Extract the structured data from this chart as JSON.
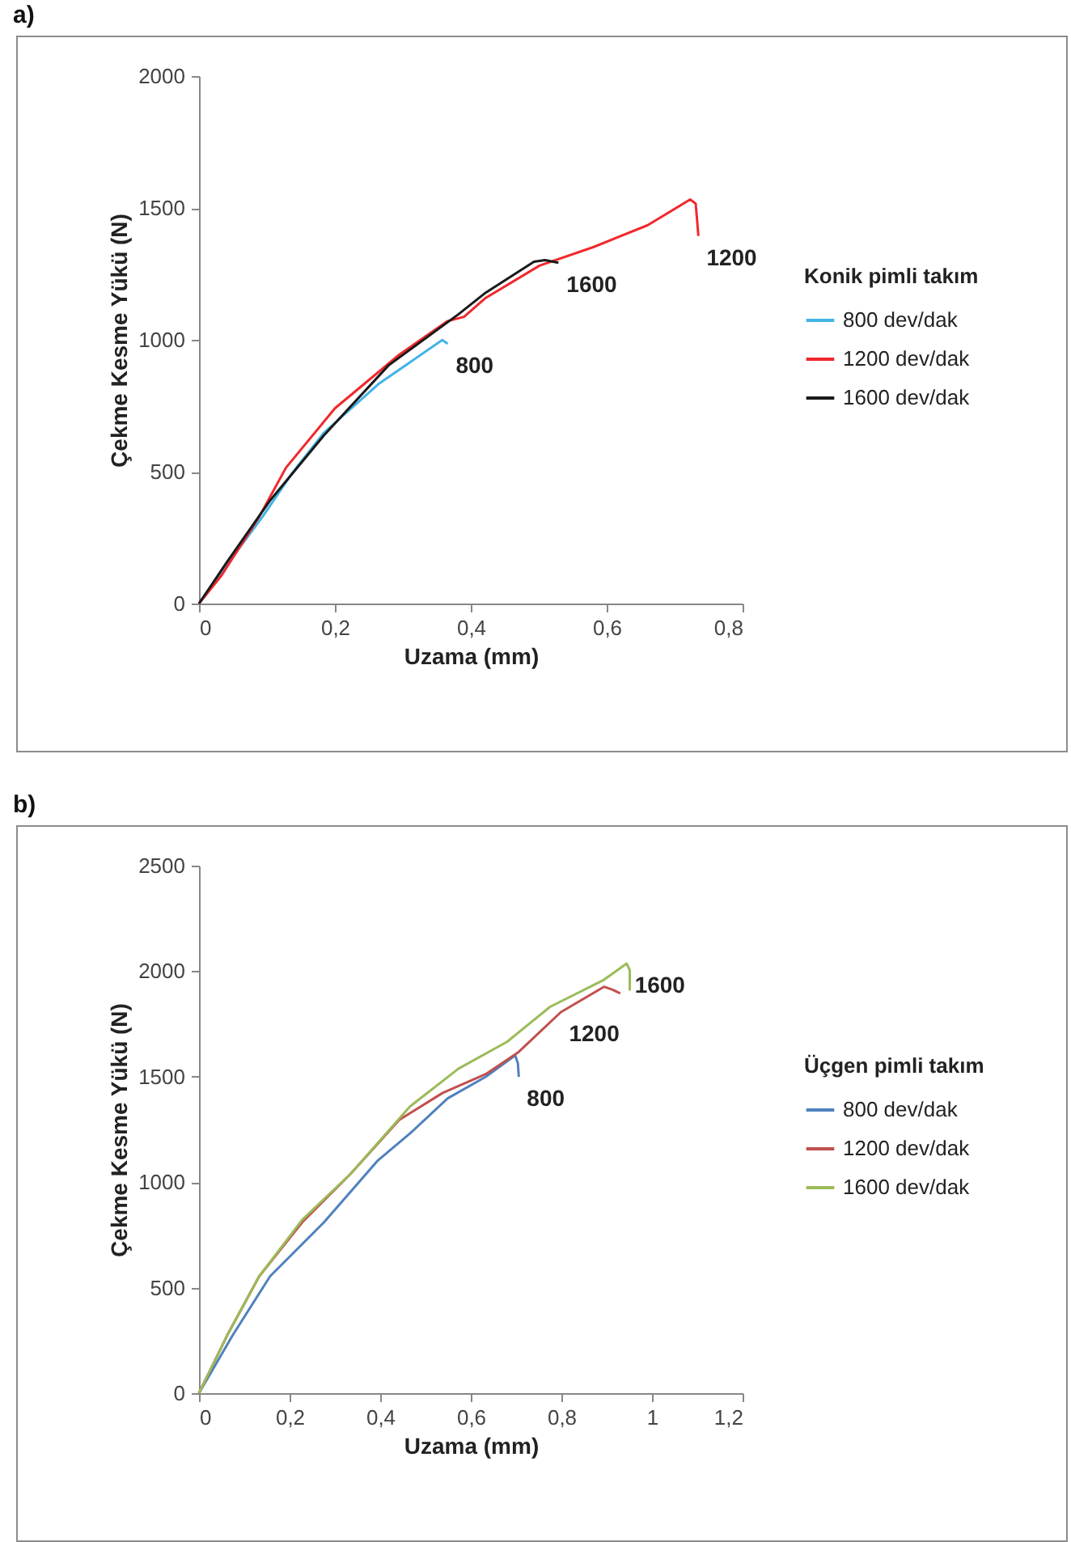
{
  "chart_data": [
    {
      "type": "line",
      "title": "a)",
      "xlabel": "Uzama (mm)",
      "ylabel": "Çekme Kesme Yükü (N)",
      "legend_title": "Konik pimli takım",
      "legend": "right",
      "grid": false,
      "xlim": [
        0,
        0.8
      ],
      "ylim": [
        0,
        2000
      ],
      "xticks": [
        {
          "value": 0,
          "label": "0"
        },
        {
          "value": 0.2,
          "label": "0,2"
        },
        {
          "value": 0.4,
          "label": "0,4"
        },
        {
          "value": 0.6,
          "label": "0,6"
        },
        {
          "value": 0.8,
          "label": "0,8"
        }
      ],
      "yticks": [
        {
          "value": 0,
          "label": "0"
        },
        500,
        1000,
        1500,
        2000
      ],
      "series": [
        {
          "name": "800 dev/dak",
          "color": "#41b4e6",
          "x": [
            0,
            0.041,
            0.094,
            0.137,
            0.184,
            0.264,
            0.358,
            0.366
          ],
          "values": [
            0,
            147,
            331,
            494,
            648,
            832,
            999,
            985
          ]
        },
        {
          "name": "1200 dev/dak",
          "color": "#f0282d",
          "x": [
            0,
            0.033,
            0.089,
            0.128,
            0.2,
            0.295,
            0.366,
            0.39,
            0.422,
            0.501,
            0.581,
            0.66,
            0.723,
            0.731,
            0.735
          ],
          "values": [
            0,
            106,
            331,
            515,
            740,
            944,
            1071,
            1087,
            1159,
            1281,
            1352,
            1434,
            1532,
            1516,
            1394
          ]
        },
        {
          "name": "1600 dev/dak",
          "color": "#1a1a1a",
          "x": [
            0,
            0.041,
            0.105,
            0.184,
            0.279,
            0.382,
            0.422,
            0.493,
            0.509,
            0.529
          ],
          "values": [
            0,
            157,
            392,
            638,
            903,
            1097,
            1179,
            1296,
            1302,
            1292
          ]
        }
      ],
      "annotations": [
        {
          "text": "800",
          "x": 0.366,
          "y": 985
        },
        {
          "text": "1600",
          "x": 0.529,
          "y": 1292
        },
        {
          "text": "1200",
          "x": 0.735,
          "y": 1394
        }
      ]
    },
    {
      "type": "line",
      "title": "b)",
      "xlabel": "Uzama (mm)",
      "ylabel": "Çekme Kesme Yükü (N)",
      "legend_title": "Üçgen pimli takım",
      "legend": "right",
      "grid": false,
      "xlim": [
        0,
        1.2
      ],
      "ylim": [
        0,
        2500
      ],
      "xticks": [
        {
          "value": 0,
          "label": "0"
        },
        {
          "value": 0.2,
          "label": "0,2"
        },
        {
          "value": 0.4,
          "label": "0,4"
        },
        {
          "value": 0.6,
          "label": "0,6"
        },
        {
          "value": 0.8,
          "label": "0,8"
        },
        1,
        {
          "value": 1.2,
          "label": "1,2"
        }
      ],
      "yticks": [
        {
          "value": 0,
          "label": "0"
        },
        500,
        1000,
        1500,
        2000,
        2500
      ],
      "series": [
        {
          "name": "800 dev/dak",
          "color": "#4f81bd",
          "x": [
            0,
            0.074,
            0.157,
            0.276,
            0.395,
            0.466,
            0.549,
            0.633,
            0.698,
            0.704,
            0.706
          ],
          "values": [
            0,
            273,
            554,
            810,
            1103,
            1231,
            1397,
            1499,
            1601,
            1563,
            1499
          ]
        },
        {
          "name": "1200 dev/dak",
          "color": "#c0504d",
          "x": [
            0,
            0.062,
            0.133,
            0.228,
            0.335,
            0.442,
            0.538,
            0.633,
            0.704,
            0.799,
            0.894,
            0.912,
            0.93
          ],
          "values": [
            0,
            273,
            554,
            810,
            1040,
            1295,
            1423,
            1512,
            1614,
            1806,
            1926,
            1913,
            1895
          ]
        },
        {
          "name": "1600 dev/dak",
          "color": "#9bbb59",
          "x": [
            0,
            0.062,
            0.133,
            0.228,
            0.335,
            0.466,
            0.573,
            0.68,
            0.775,
            0.894,
            0.944,
            0.951,
            0.951
          ],
          "values": [
            0,
            273,
            554,
            822,
            1040,
            1359,
            1538,
            1665,
            1831,
            1959,
            2036,
            2005,
            1908
          ]
        }
      ],
      "annotations": [
        {
          "text": "800",
          "x": 0.706,
          "y": 1499
        },
        {
          "text": "1200",
          "x": 0.799,
          "y": 1806
        },
        {
          "text": "1600",
          "x": 0.944,
          "y": 2036
        }
      ]
    }
  ]
}
